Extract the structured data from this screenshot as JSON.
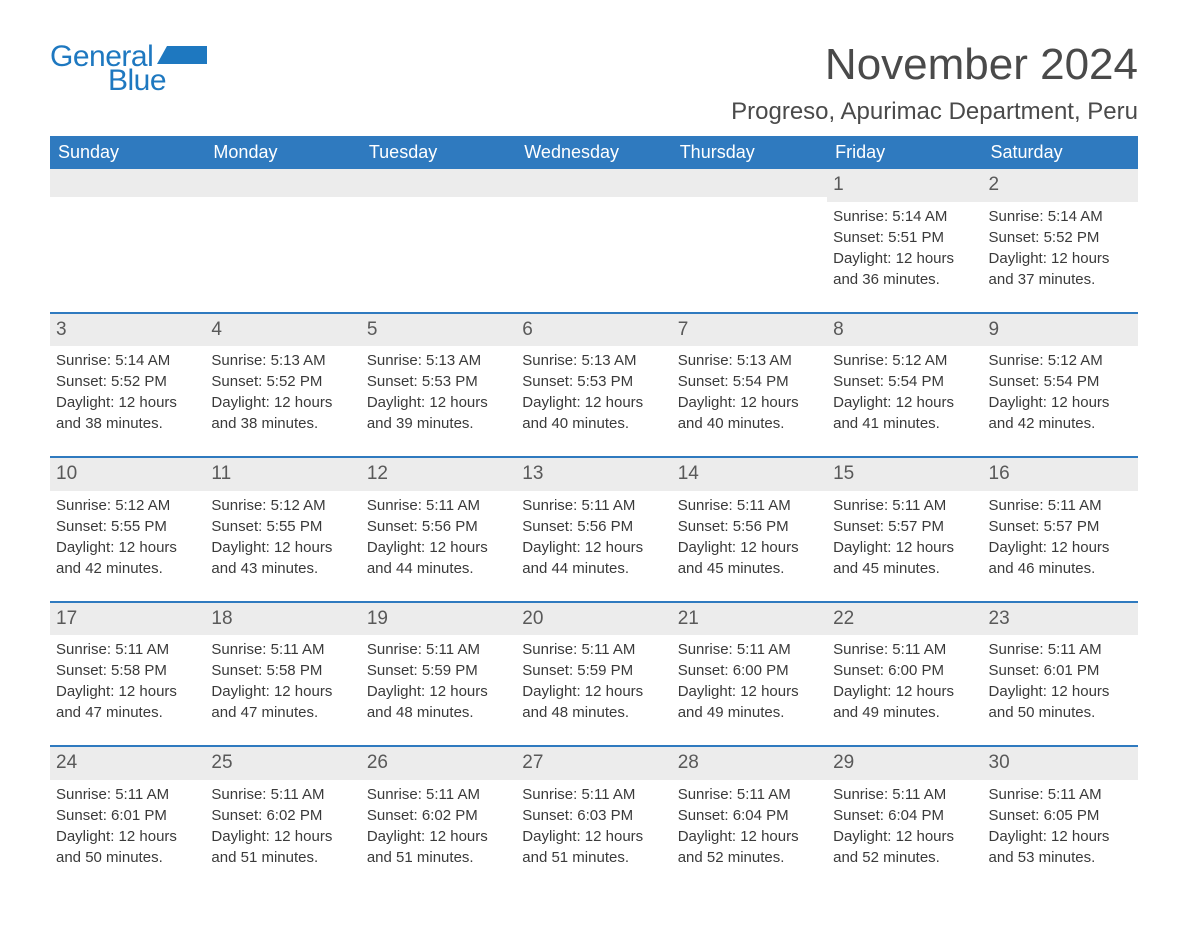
{
  "brand": {
    "word1": "General",
    "word2": "Blue",
    "color": "#1e78c0"
  },
  "title": "November 2024",
  "location": "Progreso, Apurimac Department, Peru",
  "colors": {
    "header_bg": "#2f7abf",
    "header_text": "#ffffff",
    "daybar_bg": "#ececec",
    "daybar_border": "#2f7abf",
    "body_text": "#3a3a3a",
    "title_text": "#4a4a4a",
    "page_bg": "#ffffff"
  },
  "day_headers": [
    "Sunday",
    "Monday",
    "Tuesday",
    "Wednesday",
    "Thursday",
    "Friday",
    "Saturday"
  ],
  "weeks": [
    [
      null,
      null,
      null,
      null,
      null,
      {
        "n": "1",
        "sunrise": "Sunrise: 5:14 AM",
        "sunset": "Sunset: 5:51 PM",
        "day1": "Daylight: 12 hours",
        "day2": "and 36 minutes."
      },
      {
        "n": "2",
        "sunrise": "Sunrise: 5:14 AM",
        "sunset": "Sunset: 5:52 PM",
        "day1": "Daylight: 12 hours",
        "day2": "and 37 minutes."
      }
    ],
    [
      {
        "n": "3",
        "sunrise": "Sunrise: 5:14 AM",
        "sunset": "Sunset: 5:52 PM",
        "day1": "Daylight: 12 hours",
        "day2": "and 38 minutes."
      },
      {
        "n": "4",
        "sunrise": "Sunrise: 5:13 AM",
        "sunset": "Sunset: 5:52 PM",
        "day1": "Daylight: 12 hours",
        "day2": "and 38 minutes."
      },
      {
        "n": "5",
        "sunrise": "Sunrise: 5:13 AM",
        "sunset": "Sunset: 5:53 PM",
        "day1": "Daylight: 12 hours",
        "day2": "and 39 minutes."
      },
      {
        "n": "6",
        "sunrise": "Sunrise: 5:13 AM",
        "sunset": "Sunset: 5:53 PM",
        "day1": "Daylight: 12 hours",
        "day2": "and 40 minutes."
      },
      {
        "n": "7",
        "sunrise": "Sunrise: 5:13 AM",
        "sunset": "Sunset: 5:54 PM",
        "day1": "Daylight: 12 hours",
        "day2": "and 40 minutes."
      },
      {
        "n": "8",
        "sunrise": "Sunrise: 5:12 AM",
        "sunset": "Sunset: 5:54 PM",
        "day1": "Daylight: 12 hours",
        "day2": "and 41 minutes."
      },
      {
        "n": "9",
        "sunrise": "Sunrise: 5:12 AM",
        "sunset": "Sunset: 5:54 PM",
        "day1": "Daylight: 12 hours",
        "day2": "and 42 minutes."
      }
    ],
    [
      {
        "n": "10",
        "sunrise": "Sunrise: 5:12 AM",
        "sunset": "Sunset: 5:55 PM",
        "day1": "Daylight: 12 hours",
        "day2": "and 42 minutes."
      },
      {
        "n": "11",
        "sunrise": "Sunrise: 5:12 AM",
        "sunset": "Sunset: 5:55 PM",
        "day1": "Daylight: 12 hours",
        "day2": "and 43 minutes."
      },
      {
        "n": "12",
        "sunrise": "Sunrise: 5:11 AM",
        "sunset": "Sunset: 5:56 PM",
        "day1": "Daylight: 12 hours",
        "day2": "and 44 minutes."
      },
      {
        "n": "13",
        "sunrise": "Sunrise: 5:11 AM",
        "sunset": "Sunset: 5:56 PM",
        "day1": "Daylight: 12 hours",
        "day2": "and 44 minutes."
      },
      {
        "n": "14",
        "sunrise": "Sunrise: 5:11 AM",
        "sunset": "Sunset: 5:56 PM",
        "day1": "Daylight: 12 hours",
        "day2": "and 45 minutes."
      },
      {
        "n": "15",
        "sunrise": "Sunrise: 5:11 AM",
        "sunset": "Sunset: 5:57 PM",
        "day1": "Daylight: 12 hours",
        "day2": "and 45 minutes."
      },
      {
        "n": "16",
        "sunrise": "Sunrise: 5:11 AM",
        "sunset": "Sunset: 5:57 PM",
        "day1": "Daylight: 12 hours",
        "day2": "and 46 minutes."
      }
    ],
    [
      {
        "n": "17",
        "sunrise": "Sunrise: 5:11 AM",
        "sunset": "Sunset: 5:58 PM",
        "day1": "Daylight: 12 hours",
        "day2": "and 47 minutes."
      },
      {
        "n": "18",
        "sunrise": "Sunrise: 5:11 AM",
        "sunset": "Sunset: 5:58 PM",
        "day1": "Daylight: 12 hours",
        "day2": "and 47 minutes."
      },
      {
        "n": "19",
        "sunrise": "Sunrise: 5:11 AM",
        "sunset": "Sunset: 5:59 PM",
        "day1": "Daylight: 12 hours",
        "day2": "and 48 minutes."
      },
      {
        "n": "20",
        "sunrise": "Sunrise: 5:11 AM",
        "sunset": "Sunset: 5:59 PM",
        "day1": "Daylight: 12 hours",
        "day2": "and 48 minutes."
      },
      {
        "n": "21",
        "sunrise": "Sunrise: 5:11 AM",
        "sunset": "Sunset: 6:00 PM",
        "day1": "Daylight: 12 hours",
        "day2": "and 49 minutes."
      },
      {
        "n": "22",
        "sunrise": "Sunrise: 5:11 AM",
        "sunset": "Sunset: 6:00 PM",
        "day1": "Daylight: 12 hours",
        "day2": "and 49 minutes."
      },
      {
        "n": "23",
        "sunrise": "Sunrise: 5:11 AM",
        "sunset": "Sunset: 6:01 PM",
        "day1": "Daylight: 12 hours",
        "day2": "and 50 minutes."
      }
    ],
    [
      {
        "n": "24",
        "sunrise": "Sunrise: 5:11 AM",
        "sunset": "Sunset: 6:01 PM",
        "day1": "Daylight: 12 hours",
        "day2": "and 50 minutes."
      },
      {
        "n": "25",
        "sunrise": "Sunrise: 5:11 AM",
        "sunset": "Sunset: 6:02 PM",
        "day1": "Daylight: 12 hours",
        "day2": "and 51 minutes."
      },
      {
        "n": "26",
        "sunrise": "Sunrise: 5:11 AM",
        "sunset": "Sunset: 6:02 PM",
        "day1": "Daylight: 12 hours",
        "day2": "and 51 minutes."
      },
      {
        "n": "27",
        "sunrise": "Sunrise: 5:11 AM",
        "sunset": "Sunset: 6:03 PM",
        "day1": "Daylight: 12 hours",
        "day2": "and 51 minutes."
      },
      {
        "n": "28",
        "sunrise": "Sunrise: 5:11 AM",
        "sunset": "Sunset: 6:04 PM",
        "day1": "Daylight: 12 hours",
        "day2": "and 52 minutes."
      },
      {
        "n": "29",
        "sunrise": "Sunrise: 5:11 AM",
        "sunset": "Sunset: 6:04 PM",
        "day1": "Daylight: 12 hours",
        "day2": "and 52 minutes."
      },
      {
        "n": "30",
        "sunrise": "Sunrise: 5:11 AM",
        "sunset": "Sunset: 6:05 PM",
        "day1": "Daylight: 12 hours",
        "day2": "and 53 minutes."
      }
    ]
  ]
}
